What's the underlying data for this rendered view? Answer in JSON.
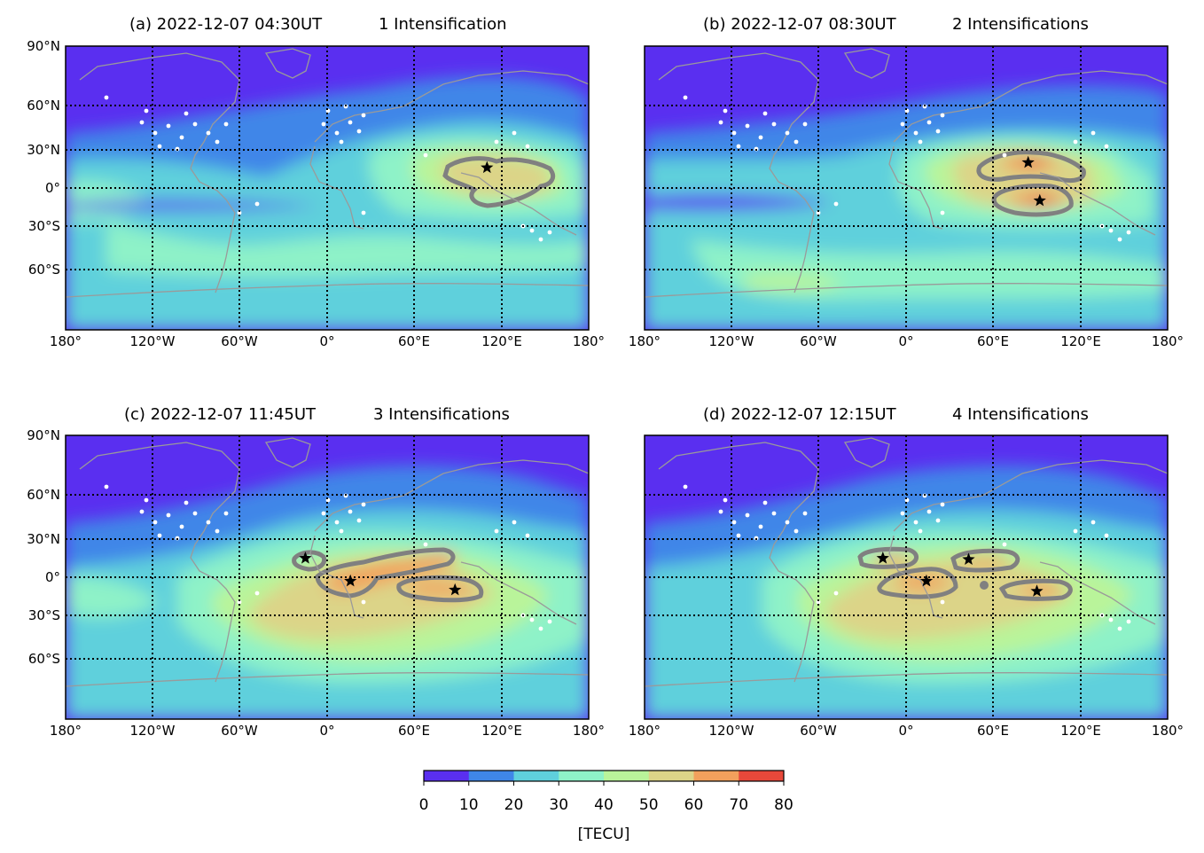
{
  "figure": {
    "colorbar": {
      "label": "[TECU]",
      "ticks": [
        "0",
        "10",
        "20",
        "30",
        "40",
        "50",
        "60",
        "70",
        "80"
      ],
      "colors": [
        "#5a2ff0",
        "#3f86e8",
        "#5fd0dc",
        "#8ef2c8",
        "#b9f49a",
        "#dcd488",
        "#f2a05c",
        "#e8483a"
      ]
    },
    "lat_labels": [
      "90°N",
      "60°N",
      "30°N",
      "0°",
      "30°S",
      "60°S"
    ],
    "lon_labels": [
      "180°",
      "120°W",
      "60°W",
      "0°",
      "60°E",
      "120°E",
      "180°"
    ],
    "star_color": "#000000",
    "contour_color": "#808080",
    "station_color": "#ffffff",
    "coast_color": "#9a9a9a"
  },
  "chart_data": [
    {
      "type": "heatmap",
      "panel": "a",
      "title": "(a) 2022-12-07 04:30UT",
      "subtitle": "1 Intensification",
      "intensifications": 1,
      "xlim": [
        -180,
        180
      ],
      "ylim": [
        -90,
        90
      ],
      "stars": [
        {
          "lon": 110,
          "lat": 16
        }
      ]
    },
    {
      "type": "heatmap",
      "panel": "b",
      "title": "(b) 2022-12-07 08:30UT",
      "subtitle": "2 Intensifications",
      "intensifications": 2,
      "xlim": [
        -180,
        180
      ],
      "ylim": [
        -90,
        90
      ],
      "stars": [
        {
          "lon": 84,
          "lat": 20
        },
        {
          "lon": 92,
          "lat": -10
        }
      ]
    },
    {
      "type": "heatmap",
      "panel": "c",
      "title": "(c) 2022-12-07 11:45UT",
      "subtitle": "3 Intensifications",
      "intensifications": 3,
      "xlim": [
        -180,
        180
      ],
      "ylim": [
        -90,
        90
      ],
      "stars": [
        {
          "lon": -15,
          "lat": 15
        },
        {
          "lon": 16,
          "lat": -3
        },
        {
          "lon": 88,
          "lat": -10
        }
      ]
    },
    {
      "type": "heatmap",
      "panel": "d",
      "title": "(d) 2022-12-07 12:15UT",
      "subtitle": "4 Intensifications",
      "intensifications": 4,
      "xlim": [
        -180,
        180
      ],
      "ylim": [
        -90,
        90
      ],
      "stars": [
        {
          "lon": -16,
          "lat": 15
        },
        {
          "lon": 43,
          "lat": 14
        },
        {
          "lon": 14,
          "lat": -3
        },
        {
          "lon": 90,
          "lat": -11
        }
      ]
    }
  ]
}
